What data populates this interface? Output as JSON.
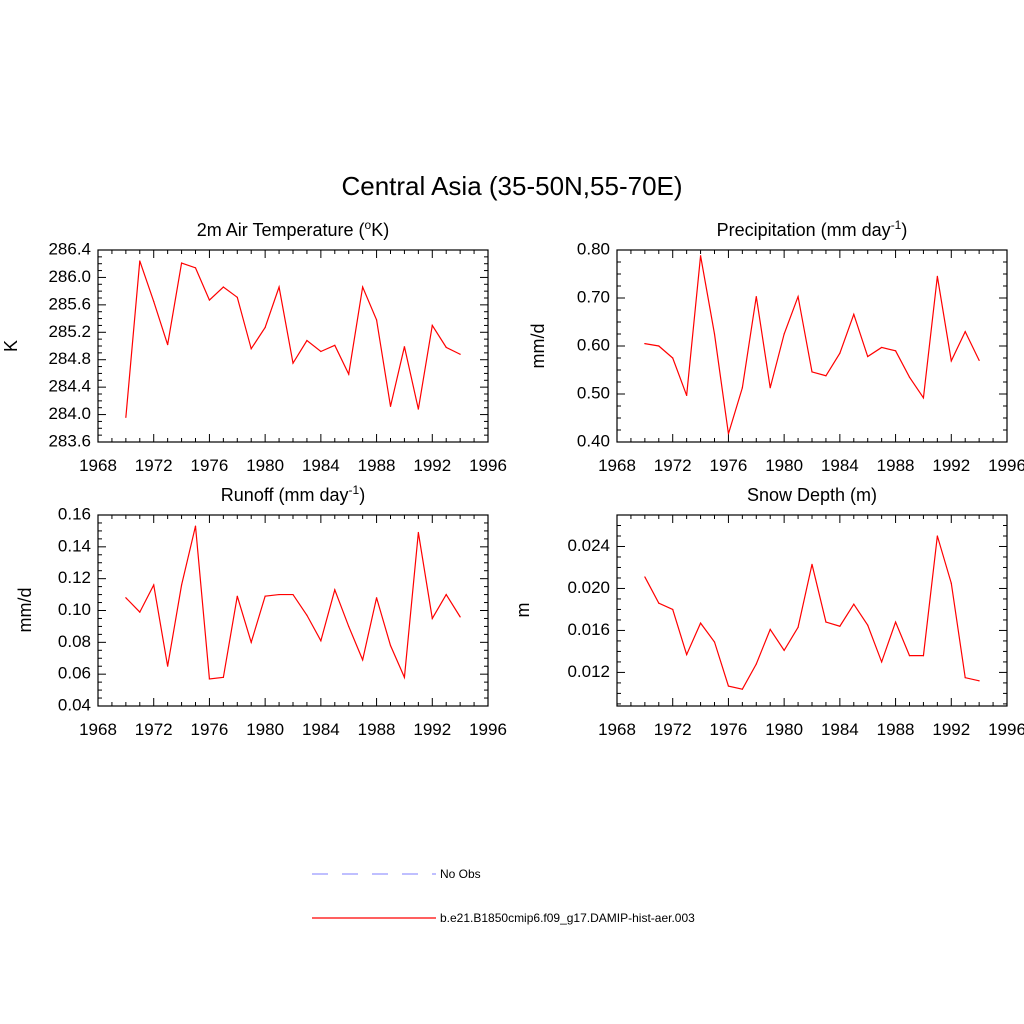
{
  "figure": {
    "title": "Central Asia (35-50N,55-70E)"
  },
  "legend": {
    "entries": [
      {
        "label": "No Obs",
        "color": "#9999ff",
        "dashed": true
      },
      {
        "label": "b.e21.B1850cmip6.f09_g17.DAMIP-hist-aer.003",
        "color": "#ff0000",
        "dashed": false
      }
    ]
  },
  "colors": {
    "series": "#ff0000",
    "axes": "#000000"
  },
  "chart_data": [
    {
      "type": "line",
      "title_main": "2m Air Temperature (",
      "title_sup": "o",
      "title_end": "K)",
      "ylabel": "K",
      "xlim": [
        1968,
        1996
      ],
      "ylim": [
        283.6,
        286.4
      ],
      "xticks": [
        "1968",
        "1972",
        "1976",
        "1980",
        "1984",
        "1988",
        "1992",
        "1996"
      ],
      "yticks": [
        "283.6",
        "284.0",
        "284.4",
        "284.8",
        "285.2",
        "285.6",
        "286.0",
        "286.4"
      ],
      "x": [
        1970,
        1971,
        1972,
        1973,
        1974,
        1975,
        1976,
        1977,
        1978,
        1979,
        1980,
        1981,
        1982,
        1983,
        1984,
        1985,
        1986,
        1987,
        1988,
        1989,
        1990,
        1991,
        1992,
        1993,
        1994
      ],
      "series": [
        {
          "name": "b.e21.B1850cmip6.f09_g17.DAMIP-hist-aer.003",
          "values": [
            283.96,
            286.24,
            285.65,
            285.02,
            286.21,
            286.14,
            285.67,
            285.86,
            285.71,
            284.96,
            285.27,
            285.86,
            284.75,
            285.08,
            284.92,
            285.01,
            284.59,
            285.86,
            285.38,
            284.12,
            284.99,
            284.08,
            285.3,
            284.98,
            284.88
          ]
        }
      ]
    },
    {
      "type": "line",
      "title_main": "Precipitation (mm day",
      "title_sup": "-1",
      "title_end": ")",
      "ylabel": "mm/d",
      "xlim": [
        1968,
        1996
      ],
      "ylim": [
        0.4,
        0.8
      ],
      "xticks": [
        "1968",
        "1972",
        "1976",
        "1980",
        "1984",
        "1988",
        "1992",
        "1996"
      ],
      "yticks": [
        "0.40",
        "0.50",
        "0.60",
        "0.70",
        "0.80"
      ],
      "x": [
        1970,
        1971,
        1972,
        1973,
        1974,
        1975,
        1976,
        1977,
        1978,
        1979,
        1980,
        1981,
        1982,
        1983,
        1984,
        1985,
        1986,
        1987,
        1988,
        1989,
        1990,
        1991,
        1992,
        1993,
        1994
      ],
      "series": [
        {
          "name": "b.e21.B1850cmip6.f09_g17.DAMIP-hist-aer.003",
          "values": [
            0.605,
            0.6,
            0.575,
            0.497,
            0.788,
            0.625,
            0.417,
            0.513,
            0.703,
            0.513,
            0.625,
            0.703,
            0.546,
            0.538,
            0.585,
            0.666,
            0.578,
            0.597,
            0.59,
            0.535,
            0.492,
            0.745,
            0.569,
            0.63,
            0.57
          ]
        }
      ]
    },
    {
      "type": "line",
      "title_main": "Runoff (mm day",
      "title_sup": "-1",
      "title_end": ")",
      "ylabel": "mm/d",
      "xlim": [
        1968,
        1996
      ],
      "ylim": [
        0.04,
        0.16
      ],
      "xticks": [
        "1968",
        "1972",
        "1976",
        "1980",
        "1984",
        "1988",
        "1992",
        "1996"
      ],
      "yticks": [
        "0.04",
        "0.06",
        "0.08",
        "0.10",
        "0.12",
        "0.14",
        "0.16"
      ],
      "x": [
        1970,
        1971,
        1972,
        1973,
        1974,
        1975,
        1976,
        1977,
        1978,
        1979,
        1980,
        1981,
        1982,
        1983,
        1984,
        1985,
        1986,
        1987,
        1988,
        1989,
        1990,
        1991,
        1992,
        1993,
        1994
      ],
      "series": [
        {
          "name": "b.e21.B1850cmip6.f09_g17.DAMIP-hist-aer.003",
          "values": [
            0.108,
            0.099,
            0.116,
            0.065,
            0.116,
            0.153,
            0.057,
            0.058,
            0.109,
            0.08,
            0.109,
            0.11,
            0.11,
            0.097,
            0.081,
            0.113,
            0.09,
            0.069,
            0.108,
            0.078,
            0.058,
            0.149,
            0.095,
            0.11,
            0.096
          ]
        }
      ]
    },
    {
      "type": "line",
      "title_main": "Snow Depth (m)",
      "title_sup": "",
      "title_end": "",
      "ylabel": "m",
      "xlim": [
        1968,
        1996
      ],
      "ylim": [
        0.0088,
        0.027
      ],
      "xticks": [
        "1968",
        "1972",
        "1976",
        "1980",
        "1984",
        "1988",
        "1992",
        "1996"
      ],
      "yticks": [
        "0.012",
        "0.016",
        "0.020",
        "0.024"
      ],
      "x": [
        1970,
        1971,
        1972,
        1973,
        1974,
        1975,
        1976,
        1977,
        1978,
        1979,
        1980,
        1981,
        1982,
        1983,
        1984,
        1985,
        1986,
        1987,
        1988,
        1989,
        1990,
        1991,
        1992,
        1993,
        1994
      ],
      "series": [
        {
          "name": "b.e21.B1850cmip6.f09_g17.DAMIP-hist-aer.003",
          "values": [
            0.0211,
            0.0186,
            0.018,
            0.0137,
            0.0167,
            0.0149,
            0.0107,
            0.0104,
            0.0128,
            0.0161,
            0.0141,
            0.0163,
            0.0223,
            0.0168,
            0.0164,
            0.0185,
            0.0165,
            0.013,
            0.0168,
            0.0136,
            0.0136,
            0.025,
            0.0205,
            0.0115,
            0.0112
          ]
        }
      ]
    }
  ]
}
